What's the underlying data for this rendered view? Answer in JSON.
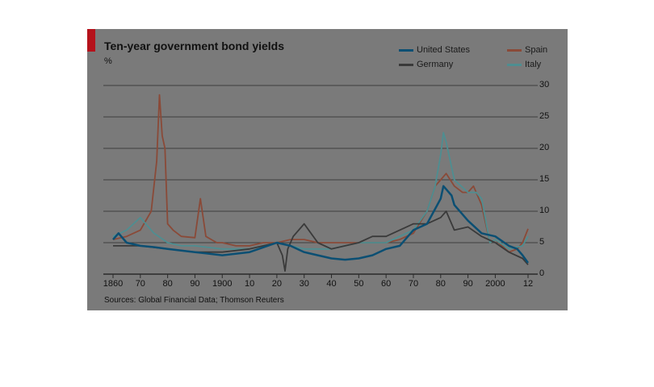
{
  "chart_data": {
    "type": "line",
    "title": "Ten-year government bond yields",
    "ylabel": "%",
    "source": "Sources: Global Financial Data; Thomson Reuters",
    "xlim": [
      1860,
      2012
    ],
    "ylim": [
      0,
      30
    ],
    "y_ticks": [
      "0",
      "5",
      "10",
      "15",
      "20",
      "25",
      "30"
    ],
    "x_ticks": [
      {
        "year": 1860,
        "label": "1860"
      },
      {
        "year": 1870,
        "label": "70"
      },
      {
        "year": 1880,
        "label": "80"
      },
      {
        "year": 1890,
        "label": "90"
      },
      {
        "year": 1900,
        "label": "1900"
      },
      {
        "year": 1910,
        "label": "10"
      },
      {
        "year": 1920,
        "label": "20"
      },
      {
        "year": 1930,
        "label": "30"
      },
      {
        "year": 1940,
        "label": "40"
      },
      {
        "year": 1950,
        "label": "50"
      },
      {
        "year": 1960,
        "label": "60"
      },
      {
        "year": 1970,
        "label": "70"
      },
      {
        "year": 1980,
        "label": "80"
      },
      {
        "year": 1990,
        "label": "90"
      },
      {
        "year": 2000,
        "label": "2000"
      },
      {
        "year": 2012,
        "label": "12"
      }
    ],
    "grid": true,
    "legend_position": "top-right",
    "series": [
      {
        "name": "Spain",
        "color": "#8a4a38",
        "x": [
          1860,
          1865,
          1870,
          1874,
          1876,
          1877,
          1878,
          1879,
          1880,
          1882,
          1885,
          1890,
          1892,
          1894,
          1896,
          1898,
          1900,
          1905,
          1910,
          1915,
          1920,
          1925,
          1930,
          1935,
          1940,
          1945,
          1950,
          1955,
          1960,
          1965,
          1970,
          1975,
          1978,
          1980,
          1982,
          1985,
          1988,
          1990,
          1992,
          1995,
          1998,
          2000,
          2005,
          2008,
          2010,
          2012
        ],
        "y": [
          5.5,
          6,
          7,
          10,
          18,
          28.5,
          22,
          20,
          8,
          7,
          6,
          5.8,
          12,
          6,
          5.5,
          5,
          5,
          4.5,
          4.5,
          5,
          5,
          5.5,
          5.5,
          5,
          5,
          5,
          5,
          5,
          5,
          5.5,
          6.5,
          10,
          14,
          15,
          16,
          14,
          13,
          13,
          14,
          11,
          5,
          5.5,
          3.5,
          4,
          5,
          7.2
        ]
      },
      {
        "name": "Italy",
        "color": "#4e8e91",
        "x": [
          1860,
          1865,
          1870,
          1875,
          1880,
          1885,
          1890,
          1900,
          1910,
          1920,
          1930,
          1940,
          1950,
          1960,
          1970,
          1975,
          1978,
          1980,
          1981,
          1982,
          1985,
          1990,
          1993,
          1995,
          1998,
          2000,
          2005,
          2010,
          2012
        ],
        "y": [
          6,
          7,
          9,
          6.5,
          5,
          4.5,
          4.5,
          4,
          4,
          5,
          4,
          4,
          5,
          5,
          7,
          10,
          14,
          19,
          22.5,
          21,
          15,
          13,
          13,
          12,
          5,
          5.5,
          4,
          4.5,
          6
        ]
      },
      {
        "name": "Germany",
        "color": "#3a3a3a",
        "x": [
          1860,
          1870,
          1880,
          1890,
          1900,
          1910,
          1920,
          1922,
          1923,
          1924,
          1926,
          1930,
          1935,
          1940,
          1945,
          1950,
          1955,
          1960,
          1970,
          1975,
          1980,
          1982,
          1985,
          1990,
          1995,
          2000,
          2005,
          2010,
          2012
        ],
        "y": [
          4.5,
          4.5,
          4,
          3.5,
          3.5,
          4,
          5,
          3,
          0.5,
          4,
          6,
          8,
          5,
          4,
          4.5,
          5,
          6,
          6,
          8,
          8,
          9,
          10,
          7,
          7.5,
          6,
          5,
          3.5,
          2.5,
          1.5
        ]
      },
      {
        "name": "United States",
        "color": "#0b4f73",
        "x": [
          1860,
          1862,
          1865,
          1870,
          1875,
          1880,
          1890,
          1900,
          1910,
          1920,
          1925,
          1930,
          1935,
          1940,
          1945,
          1950,
          1955,
          1960,
          1965,
          1970,
          1975,
          1980,
          1981,
          1982,
          1984,
          1985,
          1990,
          1995,
          2000,
          2005,
          2008,
          2010,
          2012
        ],
        "y": [
          5.5,
          6.5,
          5,
          4.5,
          4.3,
          4,
          3.5,
          3,
          3.5,
          5,
          4.5,
          3.5,
          3,
          2.5,
          2.3,
          2.5,
          3,
          4,
          4.5,
          7,
          8,
          12,
          14,
          13.5,
          12.5,
          11,
          8.5,
          6.5,
          6,
          4.5,
          4,
          3,
          1.8
        ]
      }
    ]
  },
  "legend": {
    "items": [
      {
        "label": "United States",
        "color": "#0b4f73"
      },
      {
        "label": "Germany",
        "color": "#3a3a3a"
      },
      {
        "label": "Spain",
        "color": "#8a4a38"
      },
      {
        "label": "Italy",
        "color": "#4e8e91"
      }
    ]
  },
  "colors": {
    "panel_background": "#7a7a7a",
    "gridline": "#3f3f3f",
    "corner_tag": "#b5121b",
    "highlight": "#5fd3f0"
  }
}
